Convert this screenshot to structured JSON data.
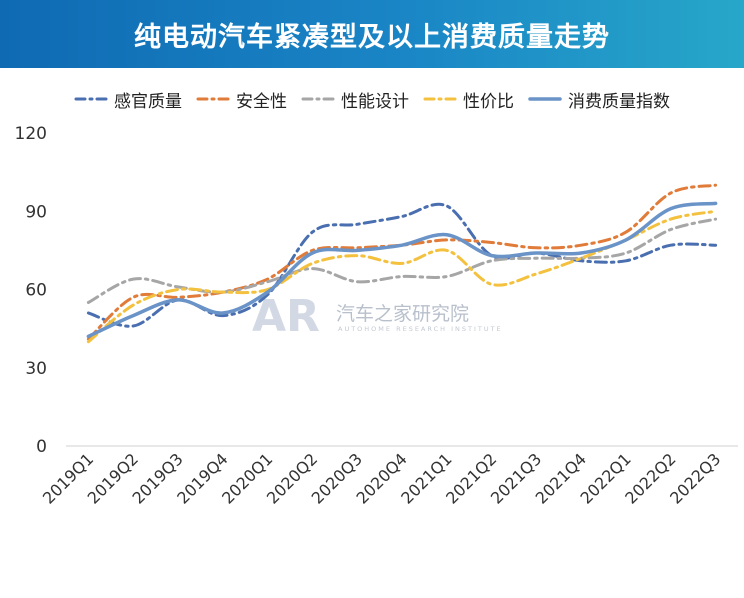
{
  "header": {
    "title": "纯电动汽车紧凑型及以上消费质量走势"
  },
  "watermark": {
    "logo": "AR",
    "text": "汽车之家研究院",
    "subtext": "AUTOHOME RESEARCH INSTITUTE"
  },
  "colors": {
    "banner": "#1a7bc0",
    "series": [
      "#4a6fb0",
      "#e07b39",
      "#a6a6a6",
      "#f4c13e",
      "#6a93c8"
    ]
  },
  "chart_data": {
    "type": "line",
    "title": "纯电动汽车紧凑型及以上消费质量走势",
    "categories": [
      "2019Q1",
      "2019Q2",
      "2019Q3",
      "2019Q4",
      "2020Q1",
      "2020Q2",
      "2020Q3",
      "2020Q4",
      "2021Q1",
      "2021Q2",
      "2021Q3",
      "2021Q4",
      "2022Q1",
      "2022Q2",
      "2022Q3"
    ],
    "y_ticks": [
      "0",
      "30",
      "60",
      "90",
      "120"
    ],
    "ylim": [
      0,
      120
    ],
    "grid": false,
    "legend_position": "top",
    "series": [
      {
        "name": "感官质量",
        "style": "dash-dot",
        "values": [
          51,
          46,
          56,
          50,
          58,
          82,
          85,
          88,
          92,
          73,
          74,
          71,
          71,
          77,
          77
        ]
      },
      {
        "name": "安全性",
        "style": "dash-dot",
        "values": [
          41,
          57,
          57,
          59,
          64,
          75,
          76,
          77,
          79,
          78,
          76,
          77,
          82,
          97,
          100
        ]
      },
      {
        "name": "性能设计",
        "style": "dash-dot",
        "values": [
          55,
          64,
          61,
          59,
          63,
          68,
          63,
          65,
          65,
          71,
          72,
          72,
          74,
          83,
          87
        ]
      },
      {
        "name": "性价比",
        "style": "dash-dot",
        "values": [
          40,
          54,
          60,
          59,
          60,
          70,
          73,
          70,
          75,
          62,
          66,
          72,
          79,
          87,
          90
        ]
      },
      {
        "name": "消费质量指数",
        "style": "solid",
        "values": [
          42,
          50,
          56,
          51,
          59,
          74,
          75,
          77,
          81,
          73,
          74,
          74,
          79,
          91,
          93
        ]
      }
    ]
  }
}
